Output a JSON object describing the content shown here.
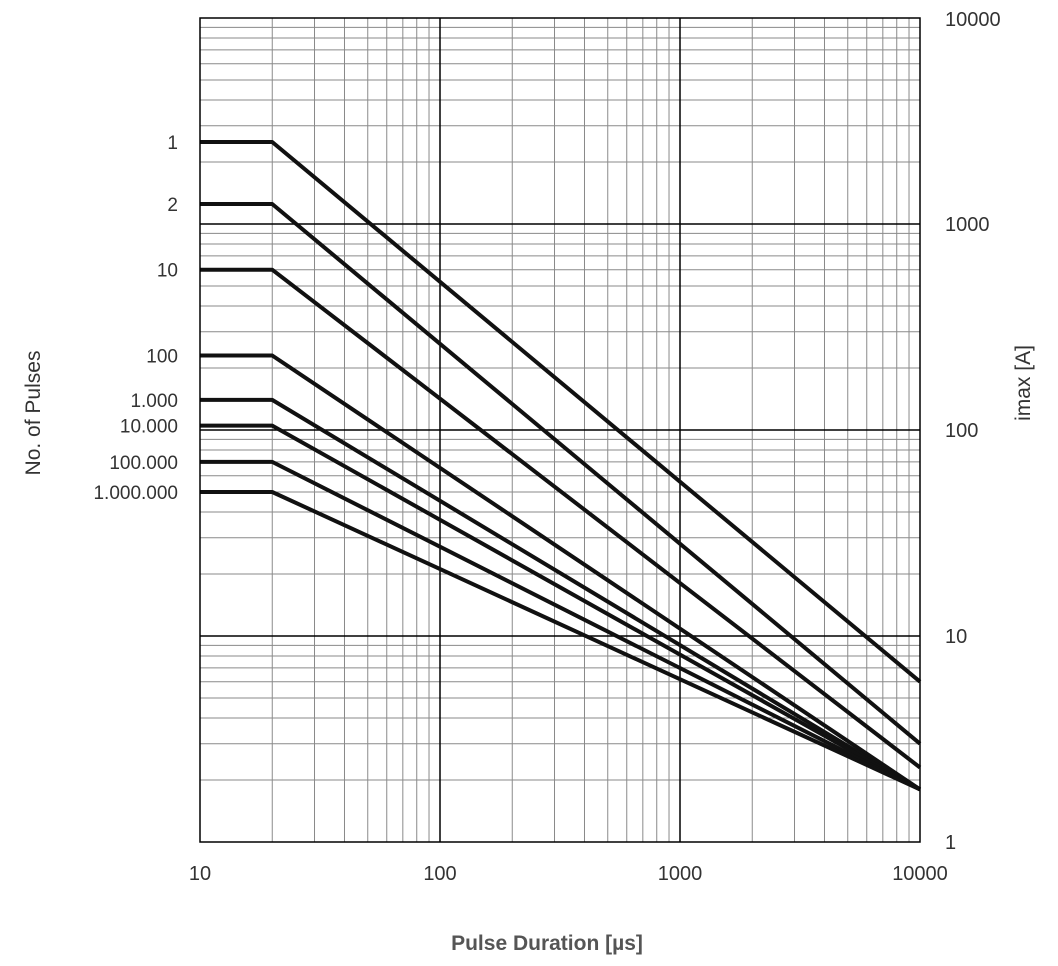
{
  "chart_data": {
    "type": "line",
    "x_scale": "log",
    "y_scale": "log",
    "xlim": [
      10,
      10000
    ],
    "ylim": [
      1,
      10000
    ],
    "grid": "major and minor",
    "xlabel": "Pulse Duration [µs]",
    "ylabel_left": "No. of Pulses",
    "ylabel_right": "imax [A]",
    "x_ticks": [
      {
        "value": 10,
        "label": "10"
      },
      {
        "value": 100,
        "label": "100"
      },
      {
        "value": 1000,
        "label": "1000"
      },
      {
        "value": 10000,
        "label": "10000"
      }
    ],
    "y_ticks": [
      {
        "value": 1,
        "label": "1"
      },
      {
        "value": 10,
        "label": "10"
      },
      {
        "value": 100,
        "label": "100"
      },
      {
        "value": 1000,
        "label": "1000"
      },
      {
        "value": 10000,
        "label": "10000"
      }
    ],
    "series": [
      {
        "name": "1",
        "x": [
          10,
          20,
          10000
        ],
        "y": [
          2500,
          2500,
          6
        ]
      },
      {
        "name": "2",
        "x": [
          10,
          20,
          10000
        ],
        "y": [
          1250,
          1250,
          3
        ]
      },
      {
        "name": "10",
        "x": [
          10,
          20,
          10000
        ],
        "y": [
          600,
          600,
          2.3
        ]
      },
      {
        "name": "100",
        "x": [
          10,
          20,
          10000
        ],
        "y": [
          230,
          230,
          1.8
        ]
      },
      {
        "name": "1.000",
        "x": [
          10,
          20,
          10000
        ],
        "y": [
          140,
          140,
          1.8
        ]
      },
      {
        "name": "10.000",
        "x": [
          10,
          20,
          10000
        ],
        "y": [
          105,
          105,
          1.8
        ]
      },
      {
        "name": "100.000",
        "x": [
          10,
          20,
          10000
        ],
        "y": [
          70,
          70,
          1.8
        ]
      },
      {
        "name": "1.000.000",
        "x": [
          10,
          20,
          10000
        ],
        "y": [
          50,
          50,
          1.8
        ]
      }
    ],
    "line_color": "#111111",
    "grid_major_color": "#000000",
    "grid_minor_color": "#8a8a8a"
  }
}
